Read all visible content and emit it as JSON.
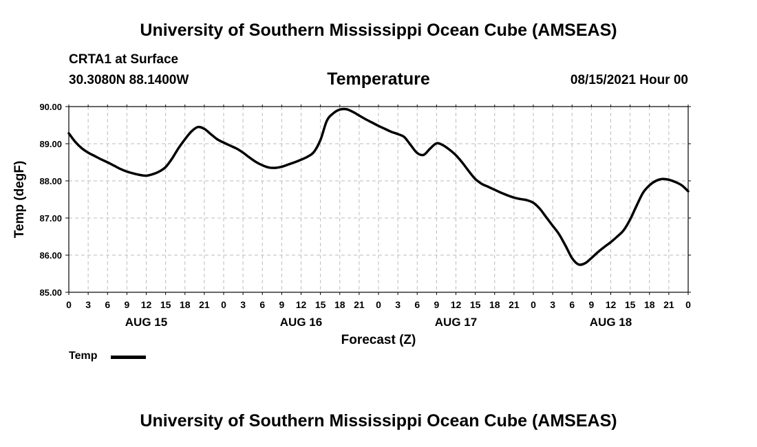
{
  "header": {
    "title": "University of Southern Mississippi Ocean Cube (AMSEAS)",
    "station": "CRTA1 at Surface",
    "coords": "30.3080N  88.1400W",
    "parameter": "Temperature",
    "datetime": "08/15/2021 Hour 00"
  },
  "footer": {
    "title": "University of Southern Mississippi Ocean Cube (AMSEAS)"
  },
  "legend": {
    "label": "Temp"
  },
  "chart_data": {
    "type": "line",
    "title": "Temperature",
    "xlabel": "Forecast (Z)",
    "ylabel": "Temp (degF)",
    "xlim": [
      0,
      96
    ],
    "ylim": [
      85.0,
      90.0
    ],
    "grid": true,
    "legend_position": "bottom-left",
    "yticks": [
      "85.00",
      "86.00",
      "87.00",
      "88.00",
      "89.00",
      "90.00"
    ],
    "xtick_labels": [
      "0",
      "3",
      "6",
      "9",
      "12",
      "15",
      "18",
      "21",
      "0",
      "3",
      "6",
      "9",
      "12",
      "15",
      "18",
      "21",
      "0",
      "3",
      "6",
      "9",
      "12",
      "15",
      "18",
      "21",
      "0",
      "3",
      "6",
      "9",
      "12",
      "15",
      "18",
      "21",
      "0"
    ],
    "day_labels": [
      {
        "label": "AUG 15",
        "hour": 12
      },
      {
        "label": "AUG 16",
        "hour": 36
      },
      {
        "label": "AUG 17",
        "hour": 60
      },
      {
        "label": "AUG 18",
        "hour": 84
      }
    ],
    "series": [
      {
        "name": "Temp",
        "x": [
          0,
          1,
          2,
          3,
          4,
          5,
          6,
          7,
          8,
          9,
          10,
          11,
          12,
          13,
          14,
          15,
          16,
          17,
          18,
          19,
          20,
          21,
          22,
          23,
          24,
          25,
          26,
          27,
          28,
          29,
          30,
          31,
          32,
          33,
          34,
          35,
          36,
          37,
          38,
          39,
          40,
          41,
          42,
          43,
          44,
          45,
          46,
          47,
          48,
          49,
          50,
          51,
          52,
          53,
          54,
          55,
          56,
          57,
          58,
          59,
          60,
          61,
          62,
          63,
          64,
          65,
          66,
          67,
          68,
          69,
          70,
          71,
          72,
          73,
          74,
          75,
          76,
          77,
          78,
          79,
          80,
          81,
          82,
          83,
          84,
          85,
          86,
          87,
          88,
          89,
          90,
          91,
          92,
          93,
          94,
          95,
          96
        ],
        "values": [
          89.28,
          89.05,
          88.88,
          88.76,
          88.67,
          88.58,
          88.5,
          88.41,
          88.32,
          88.25,
          88.2,
          88.16,
          88.14,
          88.18,
          88.25,
          88.37,
          88.6,
          88.88,
          89.12,
          89.33,
          89.45,
          89.4,
          89.26,
          89.12,
          89.03,
          88.95,
          88.87,
          88.76,
          88.63,
          88.51,
          88.42,
          88.36,
          88.35,
          88.38,
          88.44,
          88.5,
          88.57,
          88.65,
          88.78,
          89.1,
          89.62,
          89.82,
          89.92,
          89.93,
          89.86,
          89.76,
          89.66,
          89.57,
          89.48,
          89.4,
          89.32,
          89.26,
          89.18,
          88.96,
          88.75,
          88.7,
          88.87,
          89.01,
          88.96,
          88.84,
          88.69,
          88.49,
          88.26,
          88.05,
          87.92,
          87.84,
          87.76,
          87.68,
          87.61,
          87.55,
          87.51,
          87.48,
          87.41,
          87.25,
          87.02,
          86.79,
          86.56,
          86.25,
          85.92,
          85.75,
          85.78,
          85.92,
          86.08,
          86.22,
          86.35,
          86.5,
          86.67,
          86.96,
          87.33,
          87.68,
          87.88,
          88.0,
          88.05,
          88.03,
          87.97,
          87.88,
          87.72
        ]
      }
    ]
  }
}
